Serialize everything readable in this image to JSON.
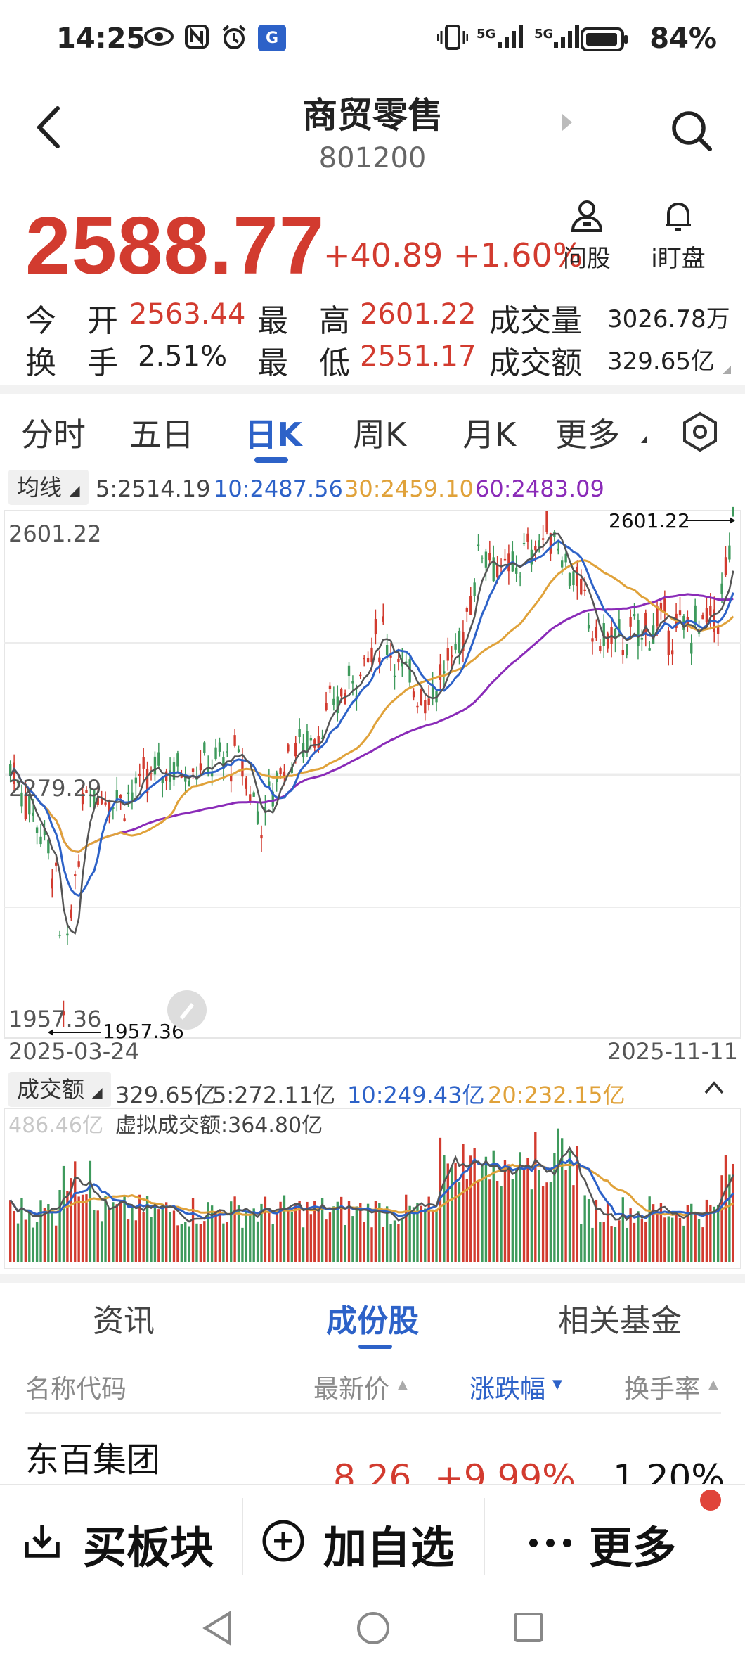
{
  "status_bar": {
    "time": "14:25",
    "battery": "84%",
    "net1": "5G",
    "net2": "5G"
  },
  "header": {
    "title": "商贸零售",
    "code": "801200"
  },
  "quote": {
    "price": "2588.77",
    "change": "+40.89 +1.60%",
    "ask_label": "问股",
    "watch_label": "i盯盘"
  },
  "stats": {
    "open_label": "今　开",
    "open": "2563.44",
    "high_label": "最　高",
    "high": "2601.22",
    "vol_label": "成交量",
    "vol": "3026.78万",
    "turnover_label": "换　手",
    "turnover": "2.51%",
    "low_label": "最　低",
    "low": "2551.17",
    "amt_label": "成交额",
    "amt": "329.65亿"
  },
  "chart_tabs": [
    "分时",
    "五日",
    "日K",
    "周K",
    "月K",
    "更多"
  ],
  "ma_bar": {
    "label": "均线",
    "ma5": "5:2514.19",
    "ma10": "10:2487.56",
    "ma30": "30:2459.10",
    "ma60": "60:2483.09"
  },
  "kchart": {
    "y_top": "2601.22",
    "y_mid": "2279.29",
    "y_bottom": "1957.36",
    "high_marker": "2601.22",
    "low_marker": "1957.36",
    "date_start": "2025-03-24",
    "date_end": "2025-11-11"
  },
  "vol_bar": {
    "label": "成交额",
    "current": "329.65亿",
    "ma5": "5:272.11亿",
    "ma10": "10:249.43亿",
    "ma20": "20:232.15亿",
    "axis_max": "486.46亿",
    "virtual": "虚拟成交额:364.80亿"
  },
  "chart_data": {
    "type": "candlestick",
    "x_range": [
      "2025-03-24",
      "2025-11-11"
    ],
    "ylim": [
      1957.36,
      2601.22
    ],
    "series": [
      {
        "name": "5",
        "last": 2514.19
      },
      {
        "name": "10",
        "last": 2487.56
      },
      {
        "name": "30",
        "last": 2459.1
      },
      {
        "name": "60",
        "last": 2483.09
      }
    ],
    "colors": {
      "up": "#d23b2f",
      "down": "#3e9a5c",
      "ma5": "#555555",
      "ma10": "#2d62c8",
      "ma30": "#e0a23a",
      "ma60": "#8a2bb8"
    }
  },
  "segment_tabs": [
    "资讯",
    "成份股",
    "相关基金"
  ],
  "table": {
    "headers": {
      "name": "名称代码",
      "price": "最新价",
      "change": "涨跌幅",
      "turnover": "换手率"
    },
    "rows": [
      {
        "name": "东百集团",
        "price": "8.26",
        "change": "+9.99%",
        "turnover": "1.20%"
      }
    ]
  },
  "bottom_actions": {
    "buy": "买板块",
    "add": "加自选",
    "more": "更多"
  }
}
